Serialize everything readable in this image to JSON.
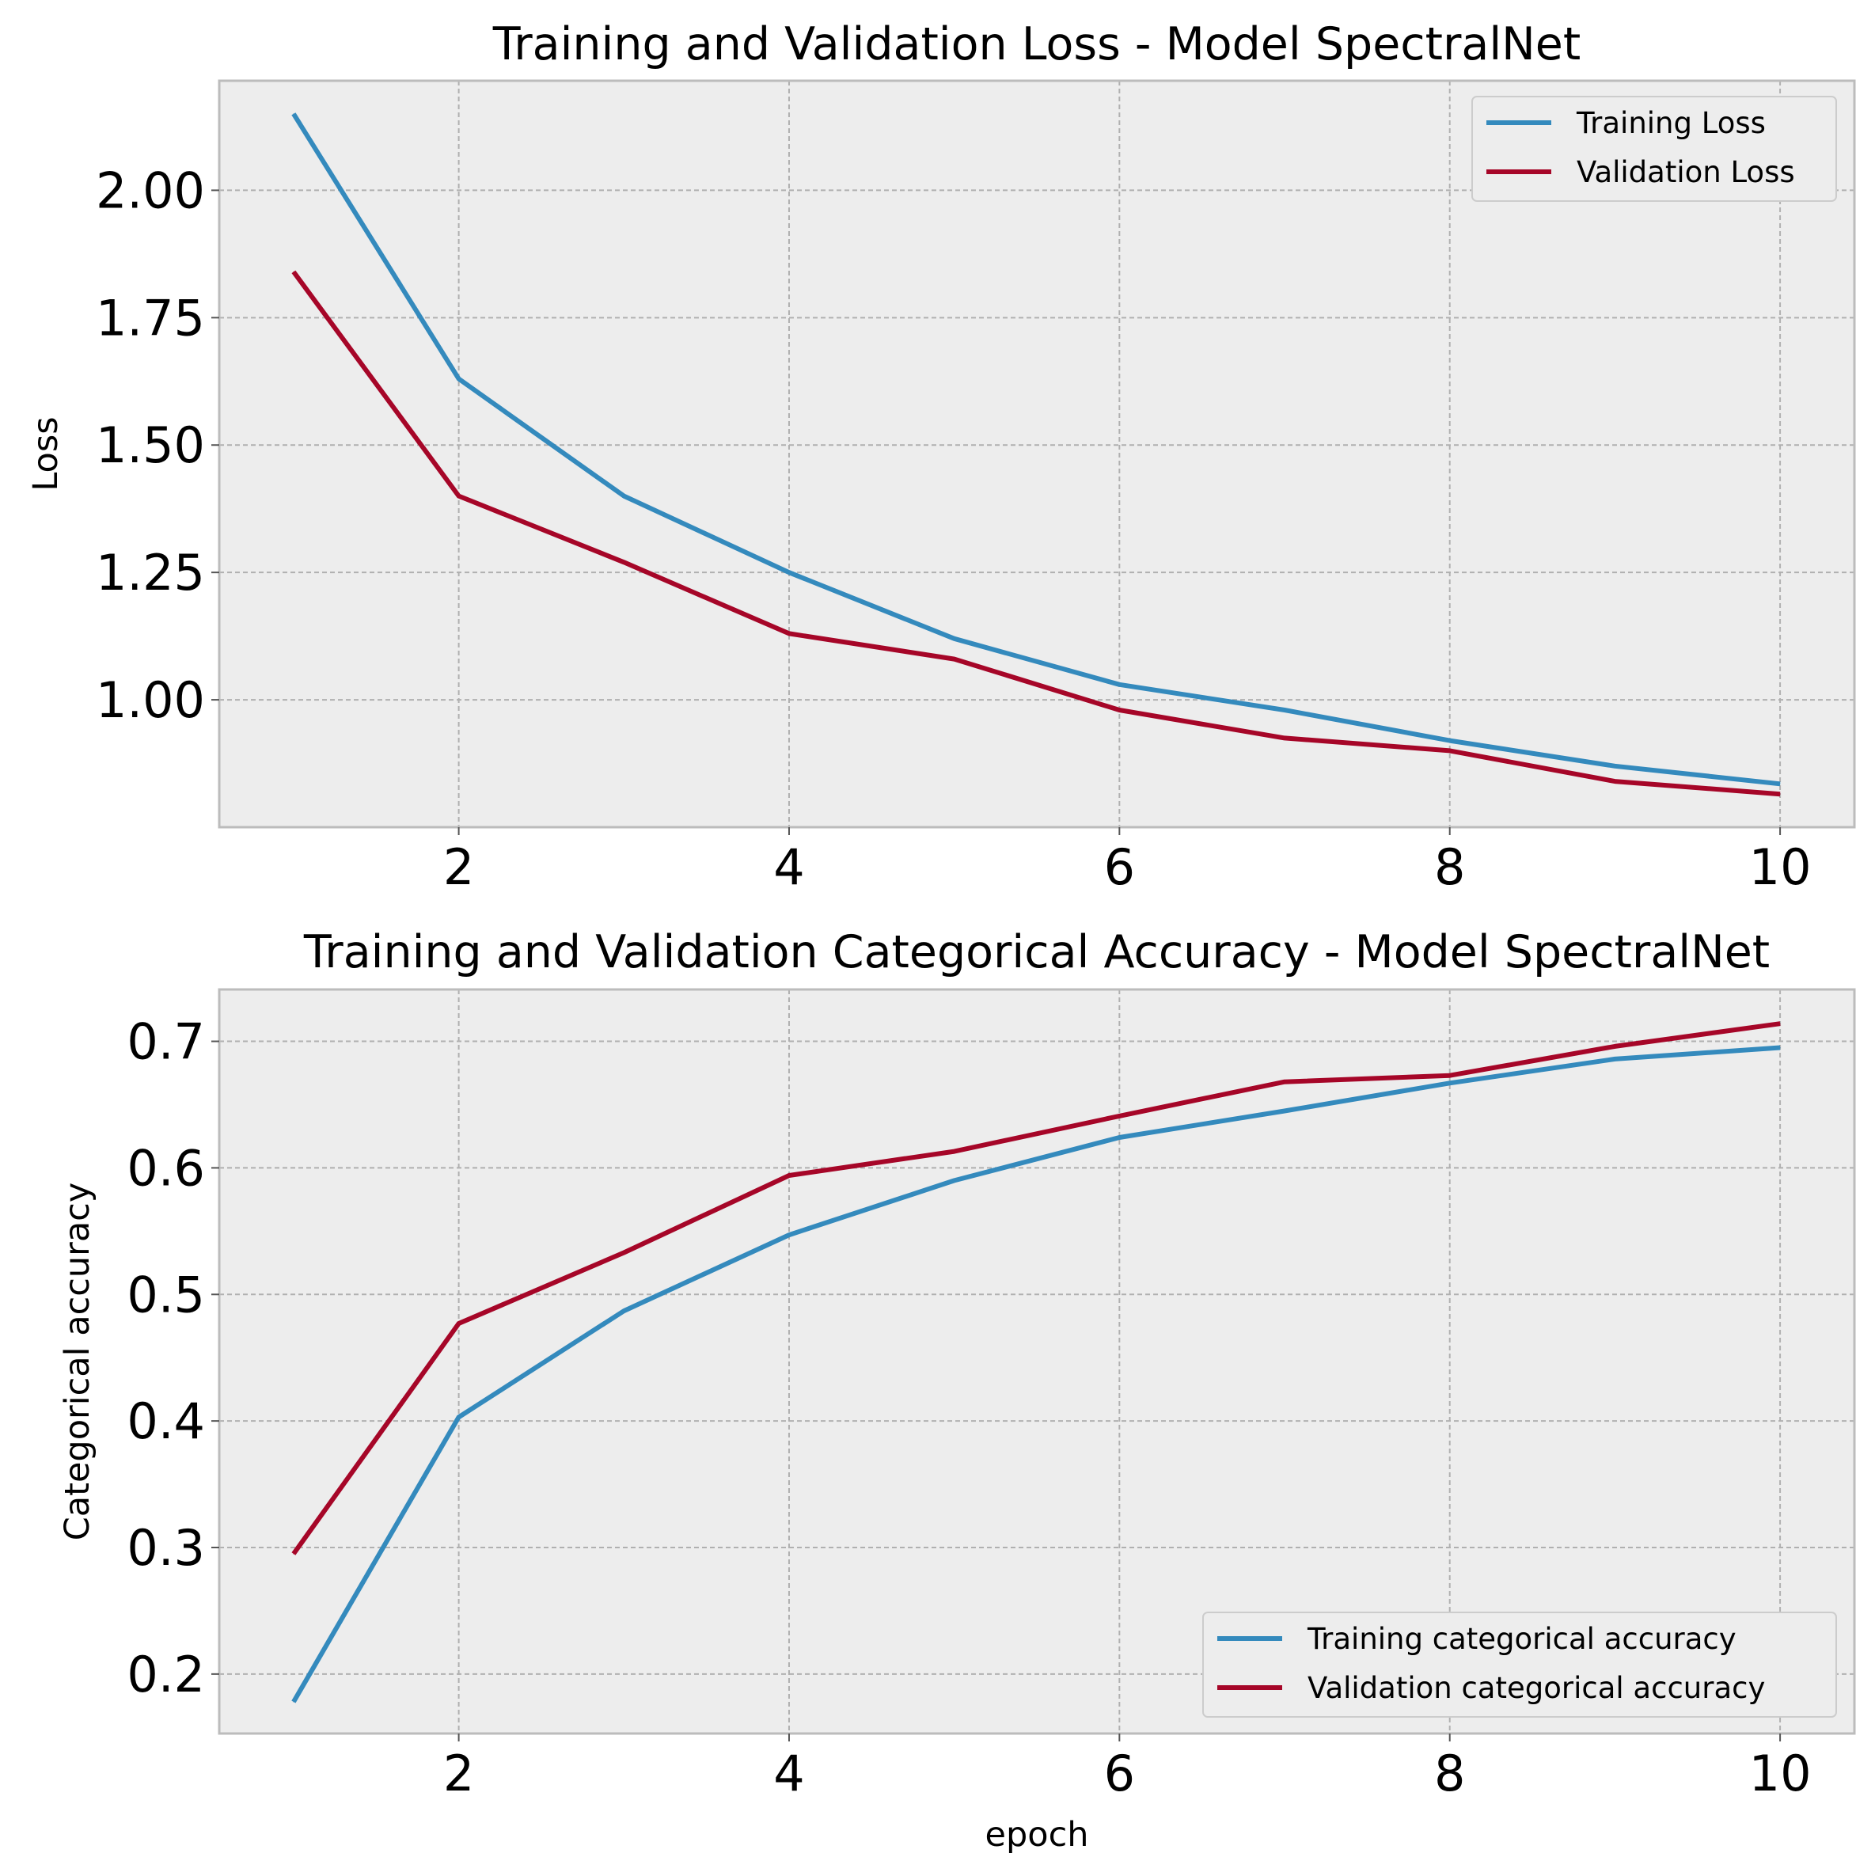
{
  "chart_data": [
    {
      "type": "line",
      "title": "Training and Validation Loss - Model SpectralNet",
      "xlabel": "",
      "ylabel": "Loss",
      "x": [
        1,
        2,
        3,
        4,
        5,
        6,
        7,
        8,
        9,
        10
      ],
      "xticks": [
        2,
        4,
        6,
        8,
        10
      ],
      "xlim": [
        0.55,
        10.45
      ],
      "yticks": [
        1.0,
        1.25,
        1.5,
        1.75,
        2.0
      ],
      "ytick_labels": [
        "1.00",
        "1.25",
        "1.50",
        "1.75",
        "2.00"
      ],
      "ylim": [
        0.75,
        2.215
      ],
      "grid": true,
      "legend_position": "top-right",
      "series": [
        {
          "name": "Training Loss",
          "color": "#348abd",
          "values": [
            2.15,
            1.63,
            1.4,
            1.25,
            1.12,
            1.03,
            0.98,
            0.92,
            0.87,
            0.835
          ]
        },
        {
          "name": "Validation Loss",
          "color": "#a60628",
          "values": [
            1.84,
            1.4,
            1.27,
            1.13,
            1.08,
            0.98,
            0.925,
            0.9,
            0.84,
            0.815
          ]
        }
      ]
    },
    {
      "type": "line",
      "title": "Training and Validation Categorical Accuracy - Model SpectralNet",
      "xlabel": "epoch",
      "ylabel": "Categorical accuracy",
      "x": [
        1,
        2,
        3,
        4,
        5,
        6,
        7,
        8,
        9,
        10
      ],
      "xticks": [
        2,
        4,
        6,
        8,
        10
      ],
      "xlim": [
        0.55,
        10.45
      ],
      "yticks": [
        0.2,
        0.3,
        0.4,
        0.5,
        0.6,
        0.7
      ],
      "ytick_labels": [
        "0.2",
        "0.3",
        "0.4",
        "0.5",
        "0.6",
        "0.7"
      ],
      "ylim": [
        0.153,
        0.741
      ],
      "grid": true,
      "legend_position": "bottom-right",
      "series": [
        {
          "name": "Training categorical accuracy",
          "color": "#348abd",
          "values": [
            0.178,
            0.403,
            0.487,
            0.547,
            0.59,
            0.624,
            0.645,
            0.667,
            0.686,
            0.695
          ]
        },
        {
          "name": "Validation categorical accuracy",
          "color": "#a60628",
          "values": [
            0.295,
            0.477,
            0.533,
            0.594,
            0.613,
            0.641,
            0.668,
            0.673,
            0.696,
            0.714
          ]
        }
      ]
    }
  ]
}
